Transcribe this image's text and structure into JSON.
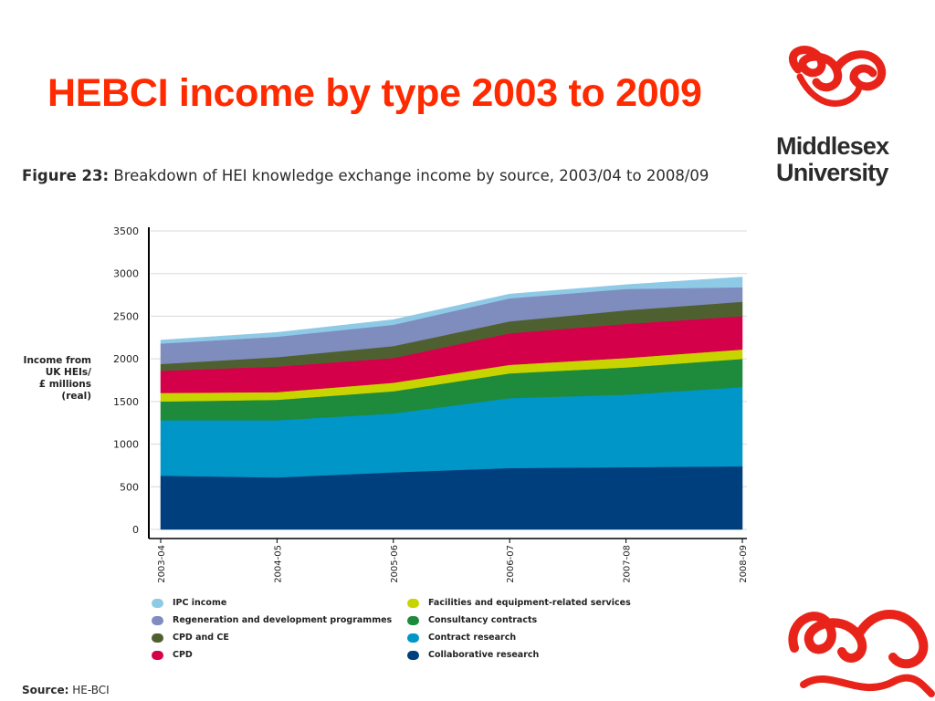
{
  "slide": {
    "title": "HEBCI income by type 2003 to 2009"
  },
  "logo": {
    "line1": "Middlesex",
    "line2": "University"
  },
  "figure": {
    "label": "Figure 23:",
    "caption": "Breakdown of HEI knowledge exchange income by source, 2003/04 to 2008/09",
    "source_label": "Source:",
    "source_value": "HE-BCI"
  },
  "colors": {
    "title": "#ff2a00",
    "brand_red": "#e8241a"
  },
  "chart_data": {
    "type": "area",
    "stacked": true,
    "ylabel": "Income from\nUK HEIs/\n£ millions\n(real)",
    "xlabel": "",
    "ylim": [
      0,
      3500
    ],
    "yticks": [
      0,
      500,
      1000,
      1500,
      2000,
      2500,
      3000,
      3500
    ],
    "grid": true,
    "legend_position": "bottom",
    "x": [
      "2003-04",
      "2004-05",
      "2005-06",
      "2006-07",
      "2007-08",
      "2008-09"
    ],
    "series": [
      {
        "name": "Collaborative research",
        "color": "#003f7d",
        "values": [
          630,
          610,
          670,
          720,
          730,
          740
        ]
      },
      {
        "name": "Contract research",
        "color": "#0096c7",
        "values": [
          650,
          670,
          690,
          820,
          850,
          930
        ]
      },
      {
        "name": "Consultancy contracts",
        "color": "#1e8a3c",
        "values": [
          220,
          240,
          260,
          290,
          320,
          330
        ]
      },
      {
        "name": "Facilities and equipment-related services",
        "color": "#c8d400",
        "values": [
          100,
          90,
          100,
          100,
          110,
          110
        ]
      },
      {
        "name": "CPD",
        "color": "#d4004a",
        "values": [
          260,
          300,
          290,
          370,
          400,
          390
        ]
      },
      {
        "name": "CPD and CE",
        "color": "#4f6030",
        "values": [
          80,
          110,
          140,
          140,
          160,
          170
        ]
      },
      {
        "name": "Regeneration and development programmes",
        "color": "#7f8cbe",
        "values": [
          240,
          240,
          250,
          270,
          250,
          170
        ]
      },
      {
        "name": "IPC income",
        "color": "#8ecae6",
        "values": [
          40,
          50,
          60,
          50,
          50,
          120
        ]
      }
    ],
    "legend_order": [
      "IPC income",
      "Regeneration and development programmes",
      "CPD and CE",
      "CPD",
      "Facilities and equipment-related services",
      "Consultancy contracts",
      "Contract research",
      "Collaborative research"
    ]
  }
}
